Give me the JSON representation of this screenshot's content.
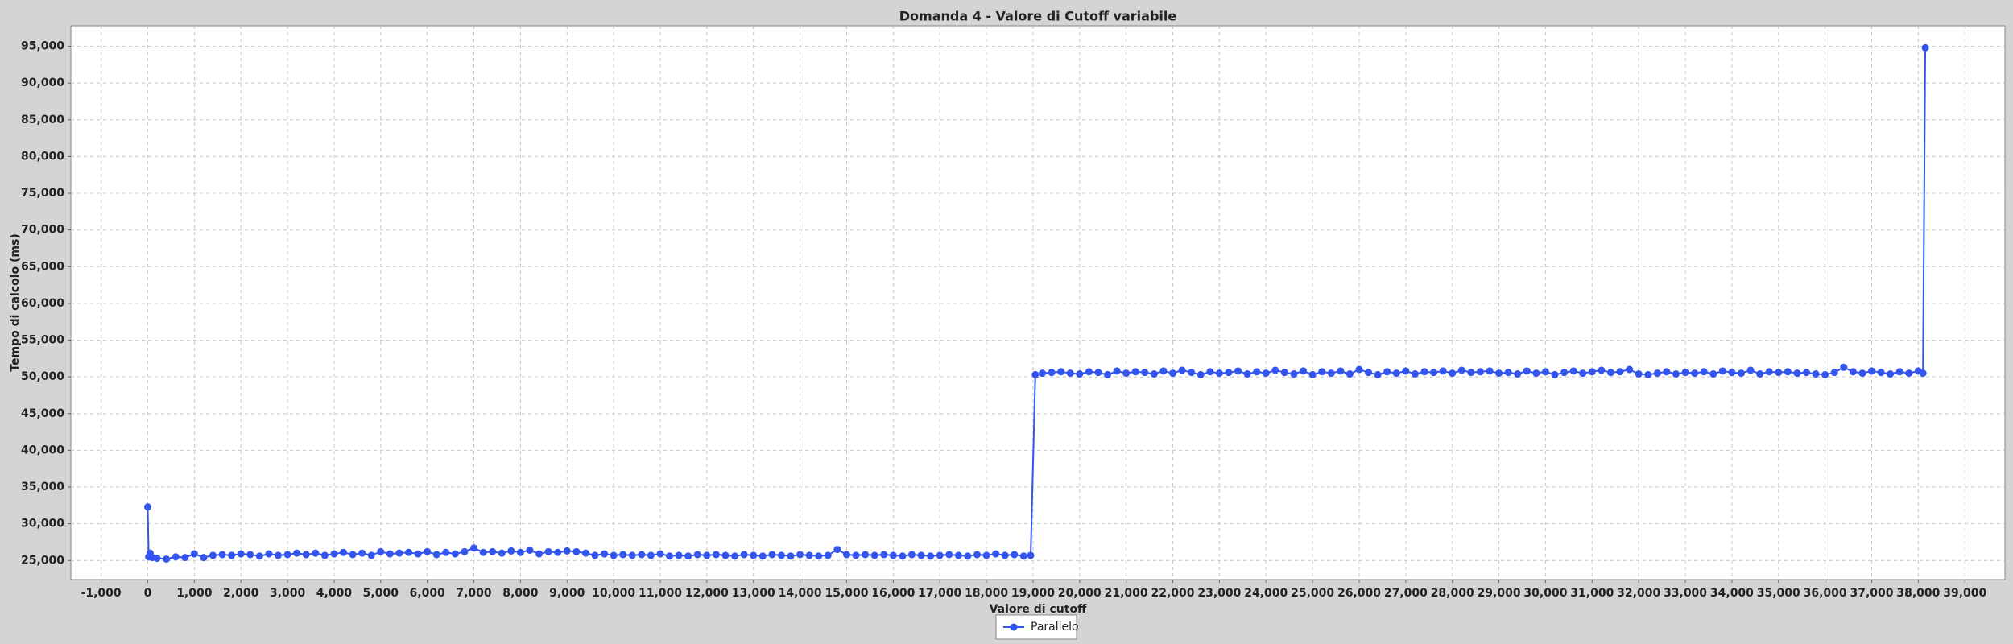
{
  "chart_data": {
    "type": "line",
    "title": "Domanda 4 - Valore di Cutoff variabile",
    "x_label": "Valore di cutoff",
    "y_label": "Tempo di calcolo (ms)",
    "grid": true,
    "legend_position": "bottom",
    "xlim": [
      -1650,
      39860
    ],
    "ylim": [
      22400,
      97800
    ],
    "xticks": [
      {
        "value": -1000,
        "label": "-1,000"
      },
      0,
      {
        "value": 1000,
        "label": "1,000"
      },
      {
        "value": 2000,
        "label": "2,000"
      },
      {
        "value": 3000,
        "label": "3,000"
      },
      {
        "value": 4000,
        "label": "4,000"
      },
      {
        "value": 5000,
        "label": "5,000"
      },
      {
        "value": 6000,
        "label": "6,000"
      },
      {
        "value": 7000,
        "label": "7,000"
      },
      {
        "value": 8000,
        "label": "8,000"
      },
      {
        "value": 9000,
        "label": "9,000"
      },
      {
        "value": 10000,
        "label": "10,000"
      },
      {
        "value": 11000,
        "label": "11,000"
      },
      {
        "value": 12000,
        "label": "12,000"
      },
      {
        "value": 13000,
        "label": "13,000"
      },
      {
        "value": 14000,
        "label": "14,000"
      },
      {
        "value": 15000,
        "label": "15,000"
      },
      {
        "value": 16000,
        "label": "16,000"
      },
      {
        "value": 17000,
        "label": "17,000"
      },
      {
        "value": 18000,
        "label": "18,000"
      },
      {
        "value": 19000,
        "label": "19,000"
      },
      {
        "value": 20000,
        "label": "20,000"
      },
      {
        "value": 21000,
        "label": "21,000"
      },
      {
        "value": 22000,
        "label": "22,000"
      },
      {
        "value": 23000,
        "label": "23,000"
      },
      {
        "value": 24000,
        "label": "24,000"
      },
      {
        "value": 25000,
        "label": "25,000"
      },
      {
        "value": 26000,
        "label": "26,000"
      },
      {
        "value": 27000,
        "label": "27,000"
      },
      {
        "value": 28000,
        "label": "28,000"
      },
      {
        "value": 29000,
        "label": "29,000"
      },
      {
        "value": 30000,
        "label": "30,000"
      },
      {
        "value": 31000,
        "label": "31,000"
      },
      {
        "value": 32000,
        "label": "32,000"
      },
      {
        "value": 33000,
        "label": "33,000"
      },
      {
        "value": 34000,
        "label": "34,000"
      },
      {
        "value": 35000,
        "label": "35,000"
      },
      {
        "value": 36000,
        "label": "36,000"
      },
      {
        "value": 37000,
        "label": "37,000"
      },
      {
        "value": 38000,
        "label": "38,000"
      },
      {
        "value": 39000,
        "label": "39,000"
      }
    ],
    "yticks": [
      {
        "value": 25000,
        "label": "25,000"
      },
      {
        "value": 30000,
        "label": "30,000"
      },
      {
        "value": 35000,
        "label": "35,000"
      },
      {
        "value": 40000,
        "label": "40,000"
      },
      {
        "value": 45000,
        "label": "45,000"
      },
      {
        "value": 50000,
        "label": "50,000"
      },
      {
        "value": 55000,
        "label": "55,000"
      },
      {
        "value": 60000,
        "label": "60,000"
      },
      {
        "value": 65000,
        "label": "65,000"
      },
      {
        "value": 70000,
        "label": "70,000"
      },
      {
        "value": 75000,
        "label": "75,000"
      },
      {
        "value": 80000,
        "label": "80,000"
      },
      {
        "value": 85000,
        "label": "85,000"
      },
      {
        "value": 90000,
        "label": "90,000"
      },
      {
        "value": 95000,
        "label": "95,000"
      }
    ],
    "x": [
      0,
      20,
      50,
      100,
      200,
      400,
      600,
      800,
      1000,
      1200,
      1400,
      1600,
      1800,
      2000,
      2200,
      2400,
      2600,
      2800,
      3000,
      3200,
      3400,
      3600,
      3800,
      4000,
      4200,
      4400,
      4600,
      4800,
      5000,
      5200,
      5400,
      5600,
      5800,
      6000,
      6200,
      6400,
      6600,
      6800,
      7000,
      7200,
      7400,
      7600,
      7800,
      8000,
      8200,
      8400,
      8600,
      8800,
      9000,
      9200,
      9400,
      9600,
      9800,
      10000,
      10200,
      10400,
      10600,
      10800,
      11000,
      11200,
      11400,
      11600,
      11800,
      12000,
      12200,
      12400,
      12600,
      12800,
      13000,
      13200,
      13400,
      13600,
      13800,
      14000,
      14200,
      14400,
      14600,
      14800,
      15000,
      15200,
      15400,
      15600,
      15800,
      16000,
      16200,
      16400,
      16600,
      16800,
      17000,
      17200,
      17400,
      17600,
      17800,
      18000,
      18200,
      18400,
      18600,
      18800,
      18950,
      19050,
      19200,
      19400,
      19600,
      19800,
      20000,
      20200,
      20400,
      20600,
      20800,
      21000,
      21200,
      21400,
      21600,
      21800,
      22000,
      22200,
      22400,
      22600,
      22800,
      23000,
      23200,
      23400,
      23600,
      23800,
      24000,
      24200,
      24400,
      24600,
      24800,
      25000,
      25200,
      25400,
      25600,
      25800,
      26000,
      26200,
      26400,
      26600,
      26800,
      27000,
      27200,
      27400,
      27600,
      27800,
      28000,
      28200,
      28400,
      28600,
      28800,
      29000,
      29200,
      29400,
      29600,
      29800,
      30000,
      30200,
      30400,
      30600,
      30800,
      31000,
      31200,
      31400,
      31600,
      31800,
      32000,
      32200,
      32400,
      32600,
      32800,
      33000,
      33200,
      33400,
      33600,
      33800,
      34000,
      34200,
      34400,
      34600,
      34800,
      35000,
      35200,
      35400,
      35600,
      35800,
      36000,
      36200,
      36400,
      36600,
      36800,
      37000,
      37200,
      37400,
      37600,
      37800,
      38000,
      38100,
      38150
    ],
    "series": [
      {
        "name": "Parallelo",
        "color": "#3355ee",
        "values": [
          32300,
          25500,
          26000,
          25400,
          25300,
          25200,
          25500,
          25400,
          25900,
          25400,
          25700,
          25800,
          25700,
          25900,
          25800,
          25600,
          25900,
          25700,
          25800,
          26000,
          25800,
          26000,
          25700,
          25900,
          26100,
          25800,
          26000,
          25700,
          26200,
          25900,
          26000,
          26100,
          25900,
          26200,
          25800,
          26100,
          25900,
          26200,
          26700,
          26100,
          26200,
          26000,
          26300,
          26100,
          26400,
          25900,
          26200,
          26100,
          26300,
          26200,
          26000,
          25700,
          25900,
          25700,
          25800,
          25700,
          25800,
          25700,
          25900,
          25600,
          25700,
          25600,
          25800,
          25700,
          25800,
          25700,
          25600,
          25800,
          25700,
          25600,
          25800,
          25700,
          25600,
          25800,
          25700,
          25600,
          25700,
          26500,
          25800,
          25700,
          25800,
          25700,
          25800,
          25700,
          25600,
          25800,
          25700,
          25600,
          25700,
          25800,
          25700,
          25600,
          25800,
          25700,
          25900,
          25700,
          25800,
          25600,
          25700,
          50300,
          50500,
          50600,
          50700,
          50500,
          50400,
          50700,
          50600,
          50300,
          50800,
          50500,
          50700,
          50600,
          50400,
          50800,
          50500,
          50900,
          50600,
          50300,
          50700,
          50500,
          50600,
          50800,
          50400,
          50700,
          50500,
          50900,
          50600,
          50400,
          50800,
          50300,
          50700,
          50500,
          50800,
          50400,
          51000,
          50600,
          50300,
          50700,
          50500,
          50800,
          50400,
          50700,
          50600,
          50800,
          50500,
          50900,
          50600,
          50700,
          50800,
          50500,
          50600,
          50400,
          50800,
          50500,
          50700,
          50300,
          50600,
          50800,
          50500,
          50700,
          50900,
          50600,
          50700,
          51000,
          50400,
          50300,
          50500,
          50700,
          50400,
          50600,
          50500,
          50700,
          50400,
          50800,
          50600,
          50500,
          50900,
          50400,
          50700,
          50600,
          50700,
          50500,
          50600,
          50400,
          50300,
          50600,
          51300,
          50700,
          50500,
          50800,
          50600,
          50400,
          50700,
          50500,
          50800,
          50500,
          94800
        ]
      }
    ]
  }
}
